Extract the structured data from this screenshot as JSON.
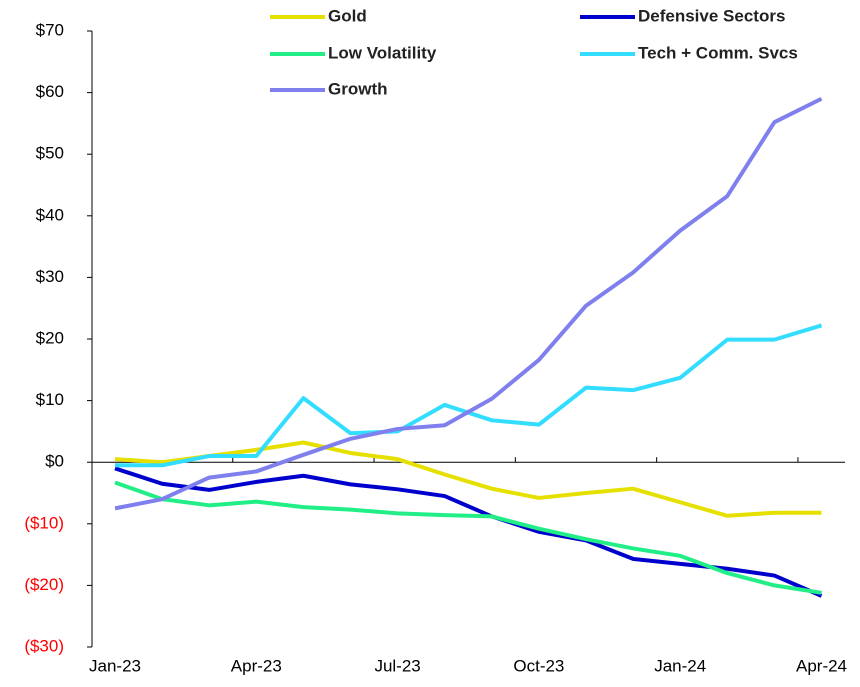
{
  "chart_data": {
    "type": "line",
    "categories": [
      "Jan-23",
      null,
      null,
      "Apr-23",
      null,
      null,
      "Jul-23",
      null,
      null,
      "Oct-23",
      null,
      null,
      "Jan-24",
      null,
      null,
      "Apr-24"
    ],
    "series": [
      {
        "name": "Gold",
        "color": "#e6e000",
        "values": [
          0.5,
          0,
          1,
          2,
          3.2,
          1.5,
          0.5,
          -2,
          -4.3,
          -5.8,
          -5,
          -4.3,
          -6.5,
          -8.7,
          -8.2,
          -8.2
        ]
      },
      {
        "name": "Defensive Sectors",
        "color": "#0000cc",
        "values": [
          -1,
          -3.5,
          -4.5,
          -3.2,
          -2.2,
          -3.6,
          -4.4,
          -5.5,
          -8.8,
          -11.3,
          -12.7,
          -15.7,
          -16.5,
          -17.3,
          -18.4,
          -21.7
        ]
      },
      {
        "name": "Low Volatility",
        "color": "#22ee88",
        "values": [
          -3.3,
          -6,
          -7,
          -6.4,
          -7.3,
          -7.7,
          -8.3,
          -8.6,
          -8.8,
          -10.8,
          -12.5,
          -14,
          -15.2,
          -18,
          -20,
          -21.2
        ]
      },
      {
        "name": "Tech + Comm. Svcs",
        "color": "#33ddff",
        "values": [
          -0.5,
          -0.5,
          1,
          1,
          10.4,
          4.7,
          5,
          9.3,
          6.8,
          6.1,
          12.1,
          11.7,
          13.7,
          19.9,
          19.9,
          22.2
        ]
      },
      {
        "name": "Growth",
        "color": "#7f7fee",
        "values": [
          -7.5,
          -6,
          -2.5,
          -1.5,
          1.2,
          3.8,
          5.4,
          6,
          10.3,
          16.6,
          25.4,
          30.8,
          37.6,
          43.2,
          55.2,
          59
        ]
      }
    ],
    "ylim": [
      -30,
      70
    ],
    "yticks": [
      {
        "value": -30,
        "label": "($30)"
      },
      {
        "value": -20,
        "label": "($20)"
      },
      {
        "value": -10,
        "label": "($10)"
      },
      {
        "value": 0,
        "label": "$0"
      },
      {
        "value": 10,
        "label": "$10"
      },
      {
        "value": 20,
        "label": "$20"
      },
      {
        "value": 30,
        "label": "$30"
      },
      {
        "value": 40,
        "label": "$40"
      },
      {
        "value": 50,
        "label": "$50"
      },
      {
        "value": 60,
        "label": "$60"
      },
      {
        "value": 70,
        "label": "$70"
      }
    ],
    "negative_label_color": "#ff0000",
    "grid": false
  }
}
